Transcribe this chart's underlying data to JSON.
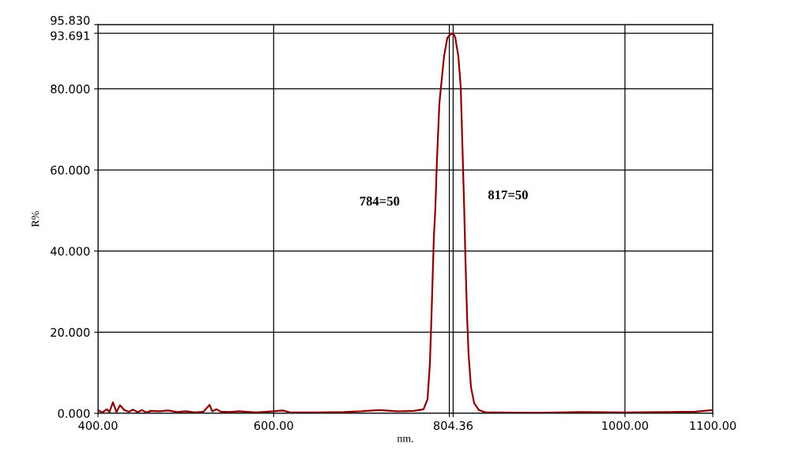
{
  "chart_data": {
    "type": "line",
    "xlabel": "nm.",
    "ylabel": "R%",
    "xlim": [
      400,
      1100
    ],
    "xticks": [
      {
        "value": 400,
        "label": "400.00"
      },
      {
        "value": 600,
        "label": "600.00"
      },
      {
        "value": 800,
        "label": null
      },
      {
        "value": 804.36,
        "label": "804.36"
      },
      {
        "value": 1000,
        "label": "1000.00"
      },
      {
        "value": 1100,
        "label": "1100.00"
      }
    ],
    "ylim": [
      0,
      95.83
    ],
    "yticks": [
      {
        "value": 0,
        "label": "0.000"
      },
      {
        "value": 20,
        "label": "20.000"
      },
      {
        "value": 40,
        "label": "40.000"
      },
      {
        "value": 60,
        "label": "60.000"
      },
      {
        "value": 80,
        "label": "80.000"
      },
      {
        "value": 93.691,
        "label": "93.691"
      },
      {
        "value": 95.83,
        "label": "95.830"
      }
    ],
    "grid": true,
    "marker": "none",
    "line_style": "solid",
    "annotations": [
      "784=50",
      "817=50"
    ],
    "series": [
      {
        "color": "#8b0000",
        "x": [
          400,
          405,
          410,
          413,
          417,
          421,
          425,
          430,
          435,
          440,
          445,
          450,
          455,
          460,
          470,
          480,
          490,
          500,
          510,
          520,
          527,
          530,
          535,
          540,
          550,
          560,
          580,
          600,
          610,
          620,
          650,
          680,
          700,
          720,
          740,
          760,
          770.7,
          775.2,
          777.9,
          779.7,
          782.4,
          784,
          786,
          788.7,
          791.4,
          794,
          797.7,
          800.4,
          804.36,
          806.7,
          810.3,
          813,
          814.8,
          817,
          818.4,
          820.2,
          822,
          824.7,
          828.3,
          833.7,
          841.8,
          850,
          900,
          950,
          1000,
          1050,
          1080,
          1100
        ],
        "values": [
          0.8,
          0.2,
          1.0,
          0.3,
          2.7,
          0.3,
          2.0,
          0.8,
          0.4,
          0.9,
          0.3,
          0.8,
          0.2,
          0.6,
          0.5,
          0.7,
          0.3,
          0.5,
          0.2,
          0.4,
          2.1,
          0.5,
          1.0,
          0.4,
          0.3,
          0.5,
          0.2,
          0.5,
          0.7,
          0.2,
          0.2,
          0.3,
          0.5,
          0.8,
          0.5,
          0.6,
          1.0,
          3.5,
          12.3,
          24,
          43.4,
          50,
          62.9,
          76.5,
          82.4,
          88,
          92.5,
          93.3,
          93.7,
          92.7,
          88,
          80.4,
          66.8,
          50,
          37.6,
          24,
          14.2,
          6.4,
          2.5,
          0.8,
          0.2,
          0.2,
          0.1,
          0.3,
          0.2,
          0.3,
          0.4,
          0.8
        ]
      }
    ]
  }
}
